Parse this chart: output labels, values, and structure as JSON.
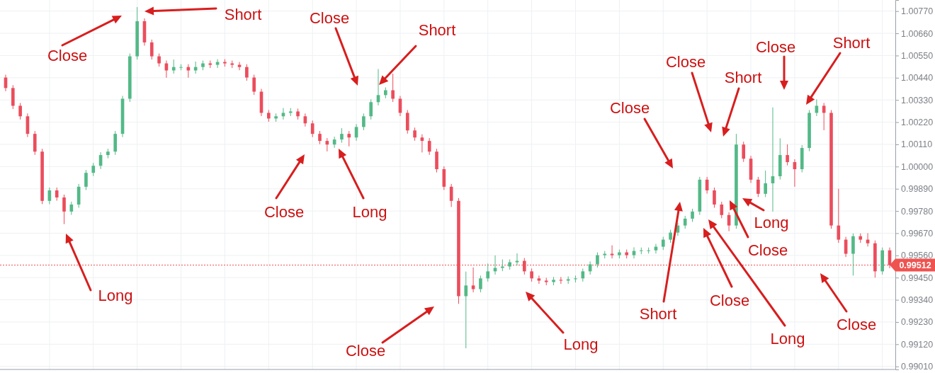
{
  "chart_data": {
    "type": "candlestick",
    "categories": [
      null,
      null,
      null,
      null,
      null,
      null,
      null,
      null,
      null,
      null,
      null,
      null,
      null,
      null,
      null,
      null,
      null,
      null,
      null,
      null,
      null,
      null,
      null,
      null,
      null,
      null,
      null,
      null,
      null,
      null,
      null,
      null,
      null,
      null,
      null,
      null,
      null,
      null,
      null,
      null,
      null,
      null,
      null,
      null,
      null,
      null,
      null,
      null,
      null,
      null,
      null,
      null,
      null,
      null,
      null,
      null,
      null,
      null,
      null,
      null,
      null,
      null,
      null,
      null,
      null,
      null,
      null,
      null,
      null,
      null,
      null,
      null,
      null,
      null,
      null,
      null,
      null,
      null,
      null,
      null,
      null,
      null,
      null,
      null,
      null,
      null,
      null,
      null,
      null,
      null,
      null,
      null,
      null,
      null,
      null,
      null,
      null,
      null,
      null,
      null,
      null,
      null,
      null,
      null,
      null,
      null,
      null,
      null,
      null,
      null,
      null,
      null,
      null,
      null,
      null,
      null,
      null,
      null,
      null,
      null,
      null,
      null
    ],
    "ohlc": [
      [
        1.00441,
        1.00455,
        1.00373,
        1.00389
      ],
      [
        1.00389,
        1.00403,
        1.00285,
        1.00301
      ],
      [
        1.00301,
        1.00315,
        1.00233,
        1.00249
      ],
      [
        1.00249,
        1.00263,
        1.00146,
        1.00162
      ],
      [
        1.00162,
        1.00176,
        1.00058,
        1.00074
      ],
      [
        1.00074,
        1.00088,
        0.99814,
        0.9983
      ],
      [
        0.9983,
        0.99896,
        0.99814,
        0.99882
      ],
      [
        0.99882,
        0.99896,
        0.99831,
        0.99847
      ],
      [
        0.99847,
        0.99861,
        0.99715,
        0.99777
      ],
      [
        0.99777,
        0.99826,
        0.99761,
        0.99812
      ],
      [
        0.99812,
        0.99914,
        0.99796,
        0.999
      ],
      [
        0.999,
        0.99983,
        0.99884,
        0.99969
      ],
      [
        0.99969,
        1.00018,
        0.99953,
        1.00004
      ],
      [
        1.00004,
        1.00071,
        0.99988,
        1.00057
      ],
      [
        1.00057,
        1.00088,
        1.00041,
        1.00074
      ],
      [
        1.00074,
        1.00176,
        1.00058,
        1.00162
      ],
      [
        1.00162,
        1.0035,
        1.00146,
        1.00336
      ],
      [
        1.00336,
        1.0056,
        1.0032,
        1.00546
      ],
      [
        1.00546,
        1.0079,
        1.0053,
        1.0072
      ],
      [
        1.0072,
        1.00734,
        1.00599,
        1.00615
      ],
      [
        1.00615,
        1.00629,
        1.0053,
        1.00546
      ],
      [
        1.00546,
        1.0056,
        1.00495,
        1.00511
      ],
      [
        1.00511,
        1.00525,
        1.0044,
        1.00476
      ],
      [
        1.00476,
        1.0053,
        1.0046,
        1.00493
      ],
      [
        1.00493,
        1.00507,
        1.00477,
        1.00493
      ],
      [
        1.00493,
        1.00507,
        1.0044,
        1.00476
      ],
      [
        1.00476,
        1.0052,
        1.0046,
        1.00493
      ],
      [
        1.00493,
        1.00525,
        1.00477,
        1.00511
      ],
      [
        1.00511,
        1.00525,
        1.00488,
        1.00504
      ],
      [
        1.00504,
        1.00532,
        1.00488,
        1.00518
      ],
      [
        1.00518,
        1.00532,
        1.00495,
        1.00511
      ],
      [
        1.00511,
        1.00525,
        1.00488,
        1.00504
      ],
      [
        1.00504,
        1.00518,
        1.00477,
        1.00493
      ],
      [
        1.00493,
        1.00507,
        1.00425,
        1.00441
      ],
      [
        1.00441,
        1.00455,
        1.00355,
        1.00371
      ],
      [
        1.00371,
        1.00385,
        1.0025,
        1.00266
      ],
      [
        1.00266,
        1.0028,
        1.00222,
        1.00238
      ],
      [
        1.00238,
        1.00263,
        1.00222,
        1.00249
      ],
      [
        1.00249,
        1.0029,
        1.00233,
        1.00266
      ],
      [
        1.00266,
        1.0029,
        1.0025,
        1.00273
      ],
      [
        1.00273,
        1.00287,
        1.00233,
        1.00249
      ],
      [
        1.00249,
        1.00263,
        1.00198,
        1.00214
      ],
      [
        1.00214,
        1.00228,
        1.00146,
        1.00162
      ],
      [
        1.00162,
        1.00176,
        1.00111,
        1.00127
      ],
      [
        1.00127,
        1.00141,
        1.00075,
        1.00109
      ],
      [
        1.00109,
        1.00148,
        1.00093,
        1.00134
      ],
      [
        1.00134,
        1.0019,
        1.00118,
        1.00162
      ],
      [
        1.00162,
        1.00176,
        1.001,
        1.00144
      ],
      [
        1.00144,
        1.0021,
        1.00128,
        1.00196
      ],
      [
        1.00196,
        1.00263,
        1.0018,
        1.00249
      ],
      [
        1.00249,
        1.00333,
        1.00233,
        1.00319
      ],
      [
        1.00319,
        1.00483,
        1.00303,
        1.00354
      ],
      [
        1.00354,
        1.00392,
        1.00338,
        1.00378
      ],
      [
        1.00378,
        1.0046,
        1.0032,
        1.00336
      ],
      [
        1.00336,
        1.0035,
        1.0025,
        1.00266
      ],
      [
        1.00266,
        1.0028,
        1.00163,
        1.00179
      ],
      [
        1.00179,
        1.00193,
        1.00128,
        1.00144
      ],
      [
        1.00144,
        1.0016,
        1.0007,
        1.00127
      ],
      [
        1.00127,
        1.00141,
        1.00058,
        1.00074
      ],
      [
        1.00074,
        1.00088,
        0.99971,
        0.99987
      ],
      [
        0.99987,
        1.00001,
        0.99884,
        0.999
      ],
      [
        0.999,
        0.99914,
        0.998,
        0.9983
      ],
      [
        0.9983,
        0.99844,
        0.9932,
        0.99358
      ],
      [
        0.99358,
        0.9948,
        0.991,
        0.99411
      ],
      [
        0.99411,
        0.995,
        0.99377,
        0.99393
      ],
      [
        0.99393,
        0.9946,
        0.99377,
        0.99446
      ],
      [
        0.99446,
        0.9952,
        0.9943,
        0.99481
      ],
      [
        0.99481,
        0.9956,
        0.99465,
        0.99498
      ],
      [
        0.99498,
        0.9954,
        0.99482,
        0.99505
      ],
      [
        0.99505,
        0.9954,
        0.99489,
        0.99526
      ],
      [
        0.99526,
        0.9957,
        0.9951,
        0.99533
      ],
      [
        0.99533,
        0.99547,
        0.99465,
        0.99481
      ],
      [
        0.99481,
        0.99495,
        0.9943,
        0.99446
      ],
      [
        0.99446,
        0.9946,
        0.99419,
        0.99435
      ],
      [
        0.99435,
        0.99449,
        0.99412,
        0.99428
      ],
      [
        0.99428,
        0.99453,
        0.99412,
        0.99439
      ],
      [
        0.99439,
        0.99453,
        0.99419,
        0.99435
      ],
      [
        0.99435,
        0.99456,
        0.99419,
        0.99442
      ],
      [
        0.99442,
        0.9946,
        0.99426,
        0.99446
      ],
      [
        0.99446,
        0.99495,
        0.9943,
        0.99481
      ],
      [
        0.99481,
        0.9953,
        0.99465,
        0.99516
      ],
      [
        0.99516,
        0.99575,
        0.995,
        0.99561
      ],
      [
        0.99561,
        0.99582,
        0.99545,
        0.99568
      ],
      [
        0.99568,
        0.9961,
        0.99545,
        0.99561
      ],
      [
        0.99561,
        0.99589,
        0.99545,
        0.99575
      ],
      [
        0.99575,
        0.99589,
        0.99545,
        0.99561
      ],
      [
        0.99561,
        0.996,
        0.99545,
        0.99582
      ],
      [
        0.99582,
        0.99599,
        0.99566,
        0.99585
      ],
      [
        0.99585,
        0.99599,
        0.99569,
        0.99585
      ],
      [
        0.99585,
        0.99617,
        0.99569,
        0.99603
      ],
      [
        0.99603,
        0.99652,
        0.99587,
        0.99638
      ],
      [
        0.99638,
        0.99687,
        0.99622,
        0.99673
      ],
      [
        0.99673,
        0.99722,
        0.99657,
        0.99708
      ],
      [
        0.99708,
        0.99756,
        0.99692,
        0.99742
      ],
      [
        0.99742,
        0.99791,
        0.99726,
        0.99777
      ],
      [
        0.99777,
        0.99949,
        0.99761,
        0.99935
      ],
      [
        0.99935,
        0.99949,
        0.99866,
        0.99882
      ],
      [
        0.99882,
        0.99896,
        0.99796,
        0.99812
      ],
      [
        0.99812,
        0.99826,
        0.99744,
        0.9976
      ],
      [
        0.9976,
        0.99774,
        0.9968,
        0.99708
      ],
      [
        0.99708,
        1.00162,
        0.99692,
        1.00109
      ],
      [
        1.00109,
        1.00123,
        1.00023,
        1.00039
      ],
      [
        1.00039,
        1.00053,
        0.99919,
        0.99935
      ],
      [
        0.99935,
        0.99949,
        0.99849,
        0.99865
      ],
      [
        0.99865,
        0.9998,
        0.99849,
        0.99917
      ],
      [
        0.99917,
        1.00293,
        0.99777,
        0.99952
      ],
      [
        0.99952,
        1.0014,
        0.99936,
        1.00057
      ],
      [
        1.00057,
        1.0011,
        1.00006,
        1.00022
      ],
      [
        1.00022,
        1.00036,
        0.999,
        0.99987
      ],
      [
        0.99987,
        1.00106,
        0.99971,
        1.00092
      ],
      [
        1.00092,
        1.0028,
        1.00076,
        1.00266
      ],
      [
        1.00266,
        1.00333,
        1.0025,
        1.00301
      ],
      [
        1.00301,
        1.00315,
        1.0018,
        1.00266
      ],
      [
        1.00266,
        1.0028,
        0.99692,
        0.99708
      ],
      [
        0.99708,
        0.9989,
        0.99622,
        0.99638
      ],
      [
        0.99638,
        0.99652,
        0.99552,
        0.99568
      ],
      [
        0.99568,
        0.99669,
        0.9946,
        0.99655
      ],
      [
        0.99655,
        0.99669,
        0.99622,
        0.99638
      ],
      [
        0.99638,
        0.9967,
        0.99604,
        0.9962
      ],
      [
        0.9962,
        0.99634,
        0.9945,
        0.99481
      ],
      [
        0.99481,
        0.99599,
        0.99465,
        0.99585
      ],
      [
        0.99585,
        0.99599,
        0.99496,
        0.99512
      ]
    ],
    "ylim": [
      0.98995,
      1.00825
    ],
    "yticks": [
      {
        "value": 0.9901,
        "label": "0.99010"
      },
      {
        "value": 0.9912,
        "label": "0.99120"
      },
      {
        "value": 0.9923,
        "label": "0.99230"
      },
      {
        "value": 0.9934,
        "label": "0.99340"
      },
      {
        "value": 0.9945,
        "label": "0.99450"
      },
      {
        "value": 0.9956,
        "label": "0.99560"
      },
      {
        "value": 0.9967,
        "label": "0.99670"
      },
      {
        "value": 0.9978,
        "label": "0.99780"
      },
      {
        "value": 0.9989,
        "label": "0.99890"
      },
      {
        "value": 1.0,
        "label": "1.00000"
      },
      {
        "value": 1.0011,
        "label": "1.00110"
      },
      {
        "value": 1.0022,
        "label": "1.00220"
      },
      {
        "value": 1.0033,
        "label": "1.00330"
      },
      {
        "value": 1.0044,
        "label": "1.00440"
      },
      {
        "value": 1.0055,
        "label": "1.00550"
      },
      {
        "value": 1.0066,
        "label": "1.00660"
      },
      {
        "value": 1.0077,
        "label": "1.00770"
      }
    ],
    "grid": true,
    "tick_labels": "y",
    "ref_lines": [
      {
        "axis": "y",
        "value": 0.99512,
        "label": "0.99512",
        "color": "#ef5350",
        "line_style": "dotted"
      }
    ],
    "annotations": [
      "Close",
      "Short",
      "Long",
      "Close",
      "Short",
      "Close",
      "Long",
      "Close",
      "Long",
      "Close",
      "Close",
      "Short",
      "Close",
      "Short",
      "Short",
      "Close",
      "Long",
      "Long",
      "Close",
      "Close"
    ]
  }
}
